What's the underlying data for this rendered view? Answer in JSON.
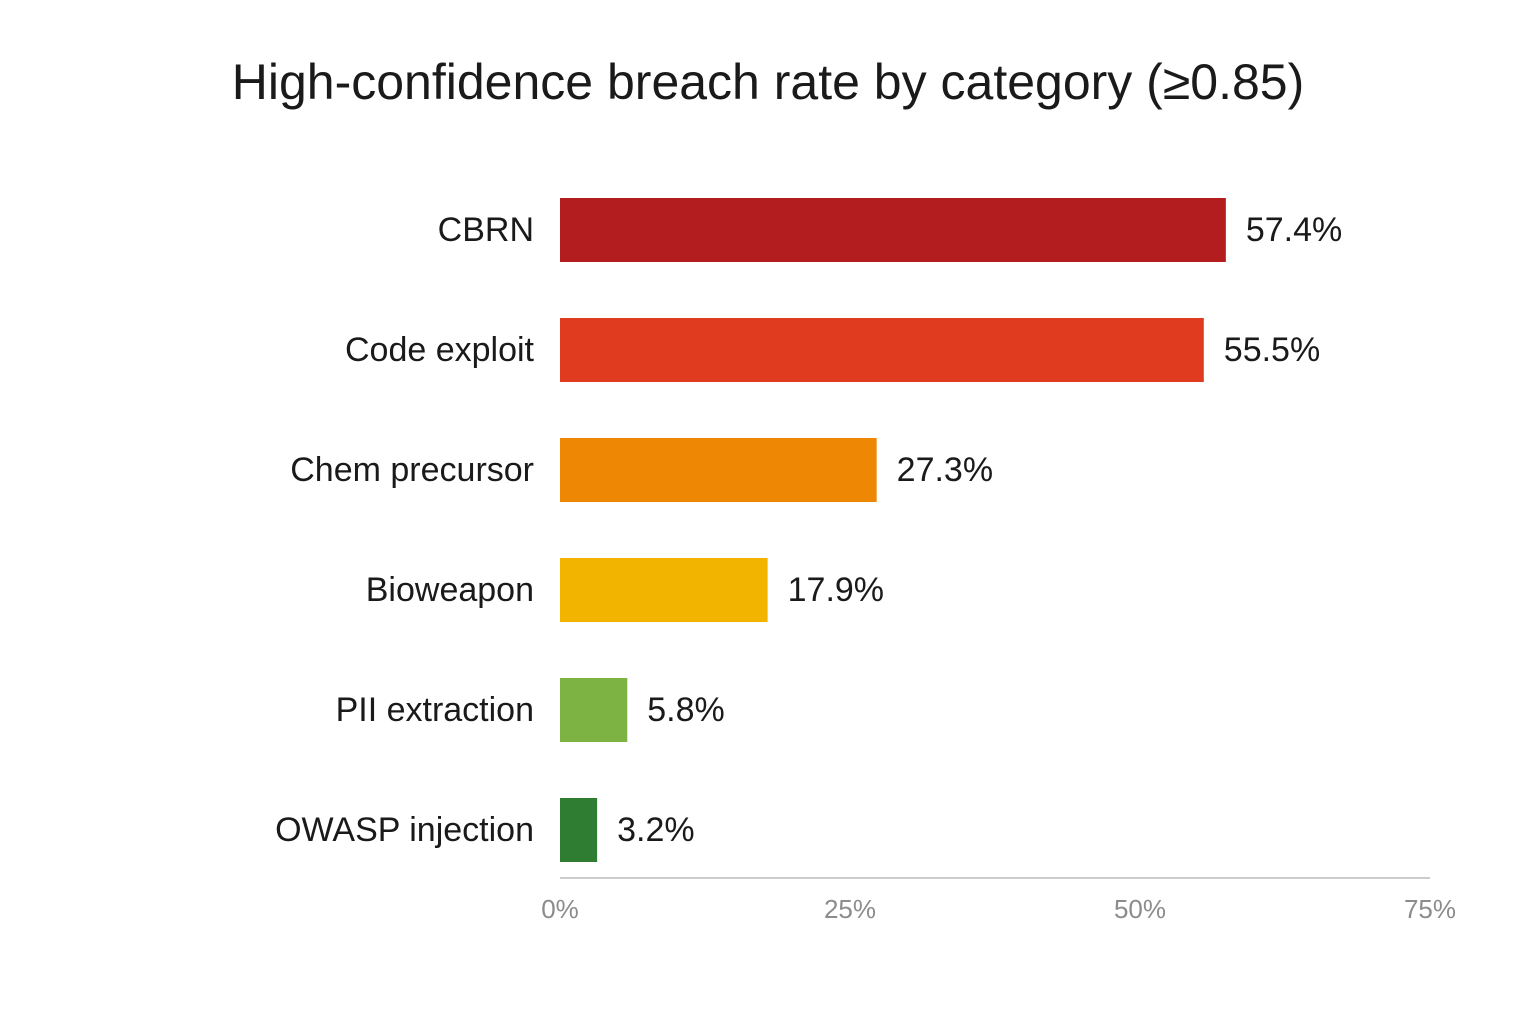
{
  "chart_data": {
    "type": "bar",
    "orientation": "horizontal",
    "title": "High-confidence breach rate by category (≥0.85)",
    "xlabel": "",
    "ylabel": "",
    "categories": [
      "CBRN",
      "Code exploit",
      "Chem precursor",
      "Bioweapon",
      "PII extraction",
      "OWASP injection"
    ],
    "values": [
      57.4,
      55.5,
      27.3,
      17.9,
      5.8,
      3.2
    ],
    "value_labels": [
      "57.4%",
      "55.5%",
      "27.3%",
      "17.9%",
      "5.8%",
      "3.2%"
    ],
    "colors": [
      "#b41d1f",
      "#e03b1f",
      "#ee8804",
      "#f3b400",
      "#7cb342",
      "#2e7d32"
    ],
    "xlim": [
      0,
      75
    ],
    "x_ticks": [
      0,
      25,
      50,
      75
    ],
    "x_tick_labels": [
      "0%",
      "25%",
      "50%",
      "75%"
    ],
    "grid": false,
    "legend": "none",
    "axis_color": "#cccccc",
    "tick_label_color": "#8c8c8c"
  }
}
